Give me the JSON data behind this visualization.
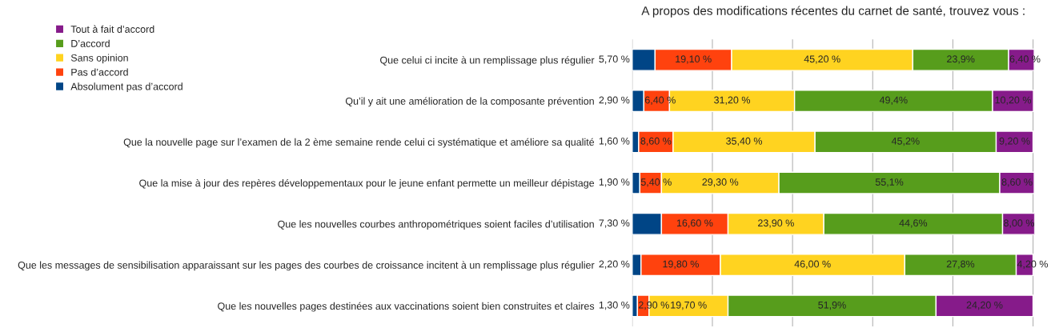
{
  "chart_data": {
    "type": "bar",
    "orientation": "horizontal",
    "stacked": true,
    "title": "A propos des modifications récentes du carnet de santé, trouvez vous :",
    "categories": [
      "Que celui ci incite à un remplissage plus régulier",
      "Qu’il y ait une amélioration de la composante prévention",
      "Que la nouvelle page sur l’examen de la 2 ème semaine rende celui ci systématique et améliore sa qualité",
      "Que la mise à jour des repères développementaux pour le jeune enfant permette un meilleur dépistage",
      "Que les nouvelles courbes anthropométriques soient faciles d’utilisation",
      "Que les messages de sensibilisation apparaissant sur les pages des courbes de croissance incitent à un remplissage plus régulier",
      "Que les nouvelles pages destinées aux vaccinations soient bien construites et claires"
    ],
    "series": [
      {
        "name": "Absolument pas d’accord",
        "color": "#004586",
        "values": [
          5.7,
          2.9,
          1.6,
          1.9,
          7.3,
          2.2,
          1.3
        ],
        "value_labels": [
          "5,70 %",
          "2,90 %",
          "1,60 %",
          "1,90 %",
          "7,30 %",
          "2,20 %",
          "1,30 %"
        ]
      },
      {
        "name": "Pas d’accord",
        "color": "#ff420e",
        "values": [
          19.1,
          6.4,
          8.6,
          5.4,
          16.6,
          19.8,
          2.9
        ],
        "value_labels": [
          "19,10 %",
          "6,40 %",
          "8,60 %",
          "5,40 %",
          "16,60 %",
          "19,80 %",
          "2,90 %"
        ]
      },
      {
        "name": "Sans opinion",
        "color": "#ffd320",
        "values": [
          45.2,
          31.2,
          35.4,
          29.3,
          23.9,
          46.0,
          19.7
        ],
        "value_labels": [
          "45,20 %",
          "31,20 %",
          "35,40 %",
          "29,30 %",
          "23,90 %",
          "46,00 %",
          "19,70 %"
        ]
      },
      {
        "name": "D’accord",
        "color": "#579d1c",
        "values": [
          23.9,
          49.4,
          45.2,
          55.1,
          44.6,
          27.8,
          51.9
        ],
        "value_labels": [
          "23,9%",
          "49,4%",
          "45,2%",
          "55,1%",
          "44,6%",
          "27,8%",
          "51,9%"
        ]
      },
      {
        "name": "Tout à fait d’accord",
        "color": "#861b8a",
        "values": [
          6.4,
          10.2,
          9.2,
          8.6,
          8.0,
          4.2,
          24.2
        ],
        "value_labels": [
          "6,40 %",
          "10,20 %",
          "9,20 %",
          "8,60 %",
          "8,00 %",
          "4,20 %",
          "24,20 %"
        ]
      }
    ],
    "grid": "x",
    "legend": "top left",
    "tick_labels": "y"
  }
}
